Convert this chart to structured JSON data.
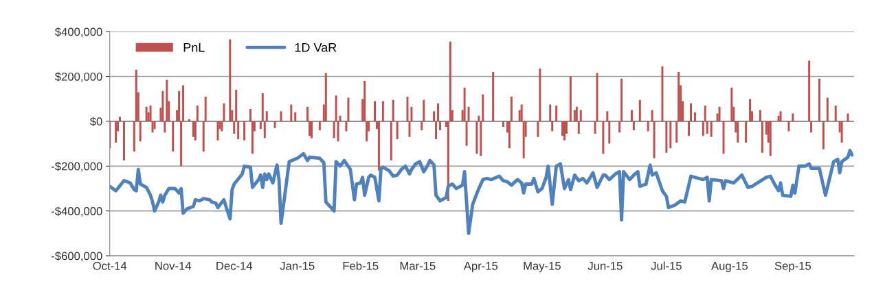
{
  "chart_data": {
    "type": "bar",
    "xlim": [
      "2014-10-01",
      "2015-10-01"
    ],
    "xticks": [
      {
        "value": "2014-10-01",
        "label": "Oct-14"
      },
      {
        "value": "2014-11-01",
        "label": "Nov-14"
      },
      {
        "value": "2014-12-01",
        "label": "Dec-14"
      },
      {
        "value": "2015-01-01",
        "label": "Jan-15"
      },
      {
        "value": "2015-02-01",
        "label": "Feb-15"
      },
      {
        "value": "2015-03-01",
        "label": "Mar-15"
      },
      {
        "value": "2015-04-01",
        "label": "Apr-15"
      },
      {
        "value": "2015-05-01",
        "label": "May-15"
      },
      {
        "value": "2015-06-01",
        "label": "Jun-15"
      },
      {
        "value": "2015-07-01",
        "label": "Jul-15"
      },
      {
        "value": "2015-08-01",
        "label": "Aug-15"
      },
      {
        "value": "2015-09-01",
        "label": "Sep-15"
      }
    ],
    "ylim": [
      -600000,
      400000
    ],
    "yticks": [
      {
        "value": -600000,
        "label": "-$600,000"
      },
      {
        "value": -400000,
        "label": "-$400,000"
      },
      {
        "value": -200000,
        "label": "-$200,000"
      },
      {
        "value": 0,
        "label": "$0"
      },
      {
        "value": 200000,
        "label": "$200,000"
      },
      {
        "value": 400000,
        "label": "$400,000"
      }
    ],
    "grid": "y",
    "legend": "top left",
    "series": [
      {
        "name": "PnL",
        "color": "#c0504d",
        "x": [
          "2014-10-01",
          "2014-10-04",
          "2014-10-05",
          "2014-10-06",
          "2014-10-08",
          "2014-10-13",
          "2014-10-14",
          "2014-10-15",
          "2014-10-16",
          "2014-10-19",
          "2014-10-20",
          "2014-10-21",
          "2014-10-22",
          "2014-10-23",
          "2014-10-26",
          "2014-10-27",
          "2014-10-28",
          "2014-10-29",
          "2014-10-30",
          "2014-11-01",
          "2014-11-03",
          "2014-11-04",
          "2014-11-05",
          "2014-11-06",
          "2014-11-09",
          "2014-11-11",
          "2014-11-12",
          "2014-11-13",
          "2014-11-16",
          "2014-11-17",
          "2014-11-23",
          "2014-11-24",
          "2014-11-25",
          "2014-11-26",
          "2014-11-29",
          "2014-11-30",
          "2014-12-01",
          "2014-12-02",
          "2014-12-03",
          "2014-12-06",
          "2014-12-09",
          "2014-12-10",
          "2014-12-11",
          "2014-12-14",
          "2014-12-15",
          "2014-12-16",
          "2014-12-17",
          "2014-12-21",
          "2014-12-24",
          "2014-12-29",
          "2014-12-31",
          "2015-01-06",
          "2015-01-07",
          "2015-01-08",
          "2015-01-12",
          "2015-01-14",
          "2015-01-15",
          "2015-01-19",
          "2015-01-20",
          "2015-01-21",
          "2015-01-22",
          "2015-01-25",
          "2015-01-26",
          "2015-02-02",
          "2015-02-03",
          "2015-02-04",
          "2015-02-05",
          "2015-02-08",
          "2015-02-09",
          "2015-02-10",
          "2015-02-12",
          "2015-02-16",
          "2015-02-17",
          "2015-02-19",
          "2015-02-24",
          "2015-02-25",
          "2015-02-26",
          "2015-03-03",
          "2015-03-04",
          "2015-03-09",
          "2015-03-10",
          "2015-03-11",
          "2015-03-12",
          "2015-03-15",
          "2015-03-16",
          "2015-03-17",
          "2015-03-18",
          "2015-03-23",
          "2015-03-24",
          "2015-03-25",
          "2015-03-26",
          "2015-03-30",
          "2015-03-31",
          "2015-04-01",
          "2015-04-02",
          "2015-04-07",
          "2015-04-12",
          "2015-04-14",
          "2015-04-15",
          "2015-04-16",
          "2015-04-20",
          "2015-04-21",
          "2015-04-22",
          "2015-04-23",
          "2015-04-29",
          "2015-04-30",
          "2015-05-05",
          "2015-05-06",
          "2015-05-08",
          "2015-05-11",
          "2015-05-12",
          "2015-05-13",
          "2015-05-15",
          "2015-05-17",
          "2015-05-18",
          "2015-05-19",
          "2015-05-20",
          "2015-05-27",
          "2015-05-28",
          "2015-05-31",
          "2015-06-02",
          "2015-06-03",
          "2015-06-08",
          "2015-06-09",
          "2015-06-14",
          "2015-06-15",
          "2015-06-18",
          "2015-06-22",
          "2015-06-24",
          "2015-06-25",
          "2015-06-29",
          "2015-07-01",
          "2015-07-03",
          "2015-07-06",
          "2015-07-07",
          "2015-07-08",
          "2015-07-09",
          "2015-07-12",
          "2015-07-13",
          "2015-07-15",
          "2015-07-19",
          "2015-07-20",
          "2015-07-21",
          "2015-07-23",
          "2015-07-26",
          "2015-07-27",
          "2015-07-29",
          "2015-08-02",
          "2015-08-03",
          "2015-08-04",
          "2015-08-05",
          "2015-08-09",
          "2015-08-11",
          "2015-08-12",
          "2015-08-16",
          "2015-08-17",
          "2015-08-19",
          "2015-08-20",
          "2015-08-21",
          "2015-08-25",
          "2015-08-26",
          "2015-08-30",
          "2015-09-01",
          "2015-09-09",
          "2015-09-10",
          "2015-09-14",
          "2015-09-16",
          "2015-09-18",
          "2015-09-22",
          "2015-09-24",
          "2015-09-25",
          "2015-09-28"
        ],
        "values": [
          -120000,
          -95000,
          -45000,
          20000,
          -175000,
          -135000,
          230000,
          130000,
          -90000,
          65000,
          40000,
          70000,
          -50000,
          -35000,
          60000,
          135000,
          -50000,
          185000,
          90000,
          -135000,
          50000,
          135000,
          -200000,
          160000,
          10000,
          -70000,
          -85000,
          70000,
          -135000,
          110000,
          -85000,
          -35000,
          -45000,
          80000,
          365000,
          50000,
          -55000,
          140000,
          -80000,
          -85000,
          55000,
          -145000,
          -45000,
          -35000,
          125000,
          -75000,
          45000,
          -30000,
          45000,
          75000,
          40000,
          65000,
          -65000,
          -75000,
          -40000,
          75000,
          215000,
          -75000,
          115000,
          -90000,
          25000,
          -45000,
          105000,
          100000,
          180000,
          -90000,
          -45000,
          90000,
          -35000,
          -220000,
          90000,
          -175000,
          95000,
          -80000,
          110000,
          -70000,
          65000,
          -40000,
          95000,
          45000,
          -80000,
          80000,
          -40000,
          -25000,
          -355000,
          355000,
          50000,
          50000,
          150000,
          -110000,
          65000,
          -145000,
          25000,
          -155000,
          120000,
          220000,
          -25000,
          -50000,
          -120000,
          110000,
          50000,
          75000,
          -165000,
          -70000,
          -70000,
          235000,
          75000,
          -45000,
          70000,
          -65000,
          -85000,
          -55000,
          200000,
          50000,
          65000,
          -55000,
          50000,
          -55000,
          215000,
          -145000,
          45000,
          -100000,
          -50000,
          190000,
          50000,
          -40000,
          95000,
          -45000,
          50000,
          -165000,
          245000,
          -140000,
          -120000,
          -95000,
          220000,
          160000,
          90000,
          -65000,
          80000,
          40000,
          -65000,
          70000,
          -55000,
          -70000,
          35000,
          65000,
          -145000,
          150000,
          65000,
          -50000,
          -95000,
          -95000,
          100000,
          45000,
          50000,
          -140000,
          -60000,
          -95000,
          -155000,
          25000,
          45000,
          -45000,
          35000,
          270000,
          -50000,
          190000,
          -125000,
          105000,
          70000,
          -50000,
          -95000,
          35000
        ]
      },
      {
        "name": "1D VaR",
        "type": "line",
        "color": "#4f81bd",
        "line_style": "solid",
        "x": [
          "2014-10-01",
          "2014-10-04",
          "2014-10-08",
          "2014-10-11",
          "2014-10-13",
          "2014-10-14",
          "2014-10-15",
          "2014-10-16",
          "2014-10-19",
          "2014-10-21",
          "2014-10-22",
          "2014-10-23",
          "2014-10-25",
          "2014-10-26",
          "2014-10-27",
          "2014-10-28",
          "2014-10-30",
          "2014-11-02",
          "2014-11-04",
          "2014-11-05",
          "2014-11-06",
          "2014-11-08",
          "2014-11-11",
          "2014-11-12",
          "2014-11-14",
          "2014-11-16",
          "2014-11-19",
          "2014-11-20",
          "2014-11-22",
          "2014-11-23",
          "2014-11-26",
          "2014-11-27",
          "2014-11-29",
          "2014-11-30",
          "2014-12-01",
          "2014-12-05",
          "2014-12-06",
          "2014-12-09",
          "2014-12-10",
          "2014-12-13",
          "2014-12-14",
          "2014-12-15",
          "2014-12-16",
          "2014-12-17",
          "2014-12-18",
          "2014-12-20",
          "2014-12-22",
          "2014-12-23",
          "2014-12-24",
          "2014-12-26",
          "2014-12-28",
          "2015-01-01",
          "2015-01-04",
          "2015-01-06",
          "2015-01-07",
          "2015-01-12",
          "2015-01-14",
          "2015-01-15",
          "2015-01-19",
          "2015-01-20",
          "2015-01-22",
          "2015-01-24",
          "2015-01-27",
          "2015-01-29",
          "2015-01-30",
          "2015-02-01",
          "2015-02-02",
          "2015-02-03",
          "2015-02-05",
          "2015-02-06",
          "2015-02-08",
          "2015-02-10",
          "2015-02-11",
          "2015-02-12",
          "2015-02-15",
          "2015-02-17",
          "2015-02-19",
          "2015-02-21",
          "2015-02-23",
          "2015-02-25",
          "2015-02-26",
          "2015-02-28",
          "2015-03-02",
          "2015-03-04",
          "2015-03-06",
          "2015-03-07",
          "2015-03-09",
          "2015-03-10",
          "2015-03-12",
          "2015-03-15",
          "2015-03-16",
          "2015-03-18",
          "2015-03-20",
          "2015-03-23",
          "2015-03-24",
          "2015-03-26",
          "2015-03-28",
          "2015-03-31",
          "2015-04-02",
          "2015-04-04",
          "2015-04-06",
          "2015-04-10",
          "2015-04-12",
          "2015-04-14",
          "2015-04-16",
          "2015-04-19",
          "2015-04-21",
          "2015-04-22",
          "2015-04-23",
          "2015-04-26",
          "2015-04-27",
          "2015-04-29",
          "2015-05-01",
          "2015-05-03",
          "2015-05-04",
          "2015-05-06",
          "2015-05-08",
          "2015-05-10",
          "2015-05-12",
          "2015-05-14",
          "2015-05-15",
          "2015-05-17",
          "2015-05-19",
          "2015-05-21",
          "2015-05-23",
          "2015-05-26",
          "2015-05-28",
          "2015-05-31",
          "2015-06-01",
          "2015-06-03",
          "2015-06-06",
          "2015-06-08",
          "2015-06-09",
          "2015-06-10",
          "2015-06-13",
          "2015-06-15",
          "2015-06-17",
          "2015-06-18",
          "2015-06-21",
          "2015-06-23",
          "2015-06-24",
          "2015-06-26",
          "2015-06-29",
          "2015-07-01",
          "2015-07-02",
          "2015-07-05",
          "2015-07-08",
          "2015-07-10",
          "2015-07-13",
          "2015-07-15",
          "2015-07-19",
          "2015-07-21",
          "2015-07-22",
          "2015-07-23",
          "2015-07-28",
          "2015-07-29",
          "2015-07-30",
          "2015-08-03",
          "2015-08-07",
          "2015-08-10",
          "2015-08-12",
          "2015-08-19",
          "2015-08-21",
          "2015-08-23",
          "2015-08-25",
          "2015-08-26",
          "2015-08-27",
          "2015-08-31",
          "2015-09-01",
          "2015-09-02",
          "2015-09-04",
          "2015-09-07",
          "2015-09-09",
          "2015-09-10",
          "2015-09-14",
          "2015-09-17",
          "2015-09-21",
          "2015-09-23",
          "2015-09-24",
          "2015-09-25",
          "2015-09-28",
          "2015-09-29",
          "2015-09-30"
        ],
        "values": [
          -290000,
          -310000,
          -265000,
          -275000,
          -305000,
          -310000,
          -215000,
          -280000,
          -295000,
          -330000,
          -360000,
          -400000,
          -360000,
          -330000,
          -360000,
          -330000,
          -300000,
          -300000,
          -320000,
          -300000,
          -410000,
          -390000,
          -380000,
          -350000,
          -355000,
          -345000,
          -350000,
          -360000,
          -365000,
          -385000,
          -350000,
          -380000,
          -435000,
          -305000,
          -280000,
          -235000,
          -200000,
          -205000,
          -295000,
          -260000,
          -240000,
          -295000,
          -235000,
          -260000,
          -235000,
          -275000,
          -195000,
          -260000,
          -455000,
          -320000,
          -180000,
          -165000,
          -145000,
          -175000,
          -160000,
          -165000,
          -185000,
          -360000,
          -400000,
          -180000,
          -200000,
          -175000,
          -215000,
          -350000,
          -280000,
          -275000,
          -250000,
          -330000,
          -250000,
          -240000,
          -250000,
          -355000,
          -210000,
          -205000,
          -220000,
          -245000,
          -240000,
          -215000,
          -200000,
          -235000,
          -215000,
          -190000,
          -180000,
          -225000,
          -195000,
          -175000,
          -195000,
          -330000,
          -355000,
          -340000,
          -290000,
          -280000,
          -300000,
          -285000,
          -225000,
          -500000,
          -370000,
          -300000,
          -260000,
          -255000,
          -260000,
          -245000,
          -265000,
          -270000,
          -285000,
          -260000,
          -275000,
          -320000,
          -280000,
          -280000,
          -255000,
          -315000,
          -300000,
          -250000,
          -200000,
          -370000,
          -200000,
          -190000,
          -300000,
          -260000,
          -305000,
          -240000,
          -265000,
          -255000,
          -275000,
          -230000,
          -295000,
          -240000,
          -240000,
          -260000,
          -235000,
          -225000,
          -440000,
          -225000,
          -260000,
          -240000,
          -225000,
          -290000,
          -280000,
          -195000,
          -240000,
          -230000,
          -310000,
          -335000,
          -385000,
          -375000,
          -355000,
          -360000,
          -245000,
          -250000,
          -260000,
          -250000,
          -355000,
          -260000,
          -265000,
          -300000,
          -265000,
          -275000,
          -240000,
          -295000,
          -290000,
          -250000,
          -245000,
          -280000,
          -310000,
          -275000,
          -330000,
          -335000,
          -285000,
          -320000,
          -200000,
          -200000,
          -190000,
          -210000,
          -210000,
          -330000,
          -180000,
          -170000,
          -230000,
          -180000,
          -160000,
          -130000,
          -150000
        ]
      }
    ]
  }
}
